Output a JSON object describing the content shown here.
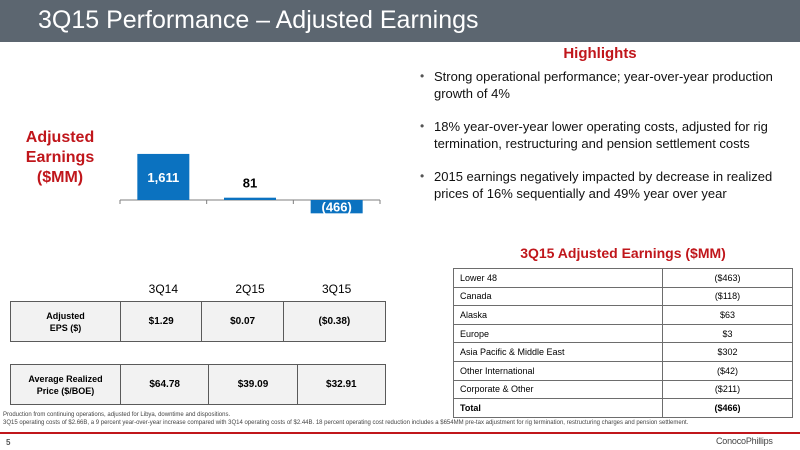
{
  "slide": {
    "title": "3Q15 Performance – Adjusted Earnings",
    "page_number": "5",
    "logo_text": "ConocoPhillips"
  },
  "chart_data": {
    "type": "bar",
    "title": "",
    "ylabel": "Adjusted Earnings ($MM)",
    "categories": [
      "3Q14",
      "2Q15",
      "3Q15"
    ],
    "values": [
      1611,
      81,
      -466
    ],
    "value_labels": [
      "1,611",
      "81",
      "(466)"
    ],
    "color": "#0b72c0",
    "ylim": [
      -466,
      1611
    ],
    "grid": false,
    "legend": "none"
  },
  "highlights": {
    "title": "Highlights",
    "items": [
      "Strong operational performance; year-over-year production growth of 4%",
      "18% year-over-year lower operating costs, adjusted for rig termination, restructuring and pension settlement costs",
      "2015 earnings negatively impacted by decrease in realized prices of 16% sequentially and 49% year over year"
    ]
  },
  "segment_table": {
    "title": "3Q15 Adjusted Earnings ($MM)",
    "rows": [
      {
        "segment": "Lower 48",
        "value": "($463)"
      },
      {
        "segment": "Canada",
        "value": "($118)"
      },
      {
        "segment": "Alaska",
        "value": "$63"
      },
      {
        "segment": "Europe",
        "value": "$3"
      },
      {
        "segment": "Asia Pacific & Middle East",
        "value": "$302"
      },
      {
        "segment": "Other International",
        "value": "($42)"
      },
      {
        "segment": "Corporate & Other",
        "value": "($211)"
      },
      {
        "segment": "Total",
        "value": "($466)"
      }
    ]
  },
  "eps_table": {
    "label_line1": "Adjusted",
    "label_line2": "EPS ($)",
    "values": [
      "$1.29",
      "$0.07",
      "($0.38)"
    ]
  },
  "price_table": {
    "label_line1": "Average Realized",
    "label_line2": "Price ($/BOE)",
    "values": [
      "$64.78",
      "$39.09",
      "$32.91"
    ]
  },
  "footnotes": [
    "Production from continuing operations, adjusted for Libya, downtime and dispositions.",
    "3Q15 operating costs of $2.66B, a 9 percent year-over-year increase compared with 3Q14 operating costs of $2.44B. 18 percent operating cost reduction includes a $654MM pre-tax adjustment for rig termination, restructuring charges and pension settlement."
  ]
}
